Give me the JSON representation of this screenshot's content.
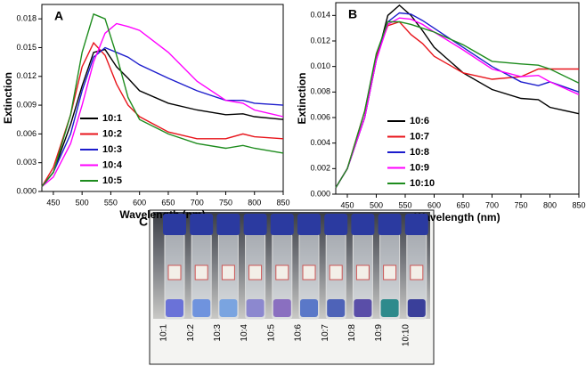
{
  "chart_data": [
    {
      "type": "line",
      "panel_label": "A",
      "xlabel": "Wavelength (nm)",
      "ylabel": "Extinction",
      "x": [
        430,
        450,
        480,
        500,
        520,
        540,
        560,
        580,
        600,
        650,
        700,
        750,
        780,
        800,
        850
      ],
      "xlim": [
        430,
        850
      ],
      "xticks": [
        450,
        500,
        550,
        600,
        650,
        700,
        750,
        800,
        850
      ],
      "ylim": [
        0,
        0.0195
      ],
      "yticks": [
        {
          "value": 0,
          "label": "0.000"
        },
        {
          "value": 0.003,
          "label": "0.003"
        },
        {
          "value": 0.006,
          "label": "0.006"
        },
        {
          "value": 0.009,
          "label": "0.009"
        },
        {
          "value": 0.012,
          "label": "0.012"
        },
        {
          "value": 0.015,
          "label": "0.015"
        },
        {
          "value": 0.018,
          "label": "0.018"
        }
      ],
      "legend": "lower left",
      "grid": false,
      "series": [
        {
          "name": "10:1",
          "color": "#000000",
          "values": [
            0.0005,
            0.002,
            0.007,
            0.011,
            0.0145,
            0.0148,
            0.013,
            0.0118,
            0.0105,
            0.0092,
            0.0085,
            0.008,
            0.0081,
            0.0078,
            0.0075
          ]
        },
        {
          "name": "10:2",
          "color": "#e8141b",
          "values": [
            0.0005,
            0.0025,
            0.008,
            0.013,
            0.0155,
            0.0142,
            0.0112,
            0.009,
            0.0078,
            0.0062,
            0.0055,
            0.0055,
            0.006,
            0.0057,
            0.0055
          ]
        },
        {
          "name": "10:3",
          "color": "#1c1ccc",
          "values": [
            0.0005,
            0.002,
            0.006,
            0.0105,
            0.014,
            0.015,
            0.0145,
            0.014,
            0.0132,
            0.0118,
            0.0105,
            0.0095,
            0.0095,
            0.0092,
            0.009
          ]
        },
        {
          "name": "10:4",
          "color": "#ff00ff",
          "values": [
            0.0005,
            0.0015,
            0.005,
            0.009,
            0.0135,
            0.0165,
            0.0175,
            0.0172,
            0.0168,
            0.0145,
            0.0115,
            0.0095,
            0.0092,
            0.0085,
            0.0078
          ]
        },
        {
          "name": "10:5",
          "color": "#1e8c1e",
          "values": [
            0.0005,
            0.002,
            0.008,
            0.0145,
            0.0185,
            0.018,
            0.0142,
            0.0098,
            0.0075,
            0.006,
            0.005,
            0.0045,
            0.0048,
            0.0045,
            0.004
          ]
        }
      ]
    },
    {
      "type": "line",
      "panel_label": "B",
      "xlabel": "Wavelength (nm)",
      "ylabel": "Extinction",
      "x": [
        430,
        450,
        480,
        500,
        520,
        540,
        560,
        580,
        600,
        650,
        700,
        750,
        780,
        800,
        850
      ],
      "xlim": [
        430,
        850
      ],
      "xticks": [
        450,
        500,
        550,
        600,
        650,
        700,
        750,
        800,
        850
      ],
      "ylim": [
        0,
        0.015
      ],
      "yticks": [
        {
          "value": 0,
          "label": "0.000"
        },
        {
          "value": 0.002,
          "label": "0.002"
        },
        {
          "value": 0.004,
          "label": "0.004"
        },
        {
          "value": 0.006,
          "label": "0.006"
        },
        {
          "value": 0.008,
          "label": "0.008"
        },
        {
          "value": 0.01,
          "label": "0.010"
        },
        {
          "value": 0.012,
          "label": "0.012"
        },
        {
          "value": 0.014,
          "label": "0.014"
        }
      ],
      "legend": "lower left",
      "grid": false,
      "series": [
        {
          "name": "10:6",
          "color": "#000000",
          "values": [
            0.0005,
            0.002,
            0.006,
            0.0105,
            0.014,
            0.0148,
            0.014,
            0.0128,
            0.0115,
            0.0095,
            0.0082,
            0.0075,
            0.0074,
            0.0068,
            0.0063
          ]
        },
        {
          "name": "10:7",
          "color": "#e8141b",
          "values": [
            0.0005,
            0.002,
            0.0065,
            0.0108,
            0.0132,
            0.0135,
            0.0125,
            0.0118,
            0.0108,
            0.0095,
            0.009,
            0.0092,
            0.0098,
            0.0098,
            0.0098
          ]
        },
        {
          "name": "10:8",
          "color": "#1c1ccc",
          "values": [
            0.0005,
            0.002,
            0.006,
            0.0105,
            0.0135,
            0.0142,
            0.0141,
            0.0136,
            0.013,
            0.0115,
            0.01,
            0.0088,
            0.0085,
            0.0088,
            0.008
          ]
        },
        {
          "name": "10:9",
          "color": "#ff00ff",
          "values": [
            0.0005,
            0.002,
            0.006,
            0.0105,
            0.0133,
            0.0138,
            0.0137,
            0.0133,
            0.0127,
            0.0113,
            0.0098,
            0.0092,
            0.0093,
            0.0088,
            0.0078
          ]
        },
        {
          "name": "10:10",
          "color": "#1e8c1e",
          "values": [
            0.0005,
            0.002,
            0.0065,
            0.011,
            0.0135,
            0.0135,
            0.0133,
            0.013,
            0.0127,
            0.0117,
            0.0104,
            0.0102,
            0.0101,
            0.0098,
            0.0087
          ]
        }
      ]
    }
  ],
  "photo": {
    "panel_label": "C",
    "vial_labels": [
      "10:1",
      "10:2",
      "10:3",
      "10:4",
      "10:5",
      "10:6",
      "10:7",
      "10:8",
      "10:9",
      "10:10"
    ]
  }
}
